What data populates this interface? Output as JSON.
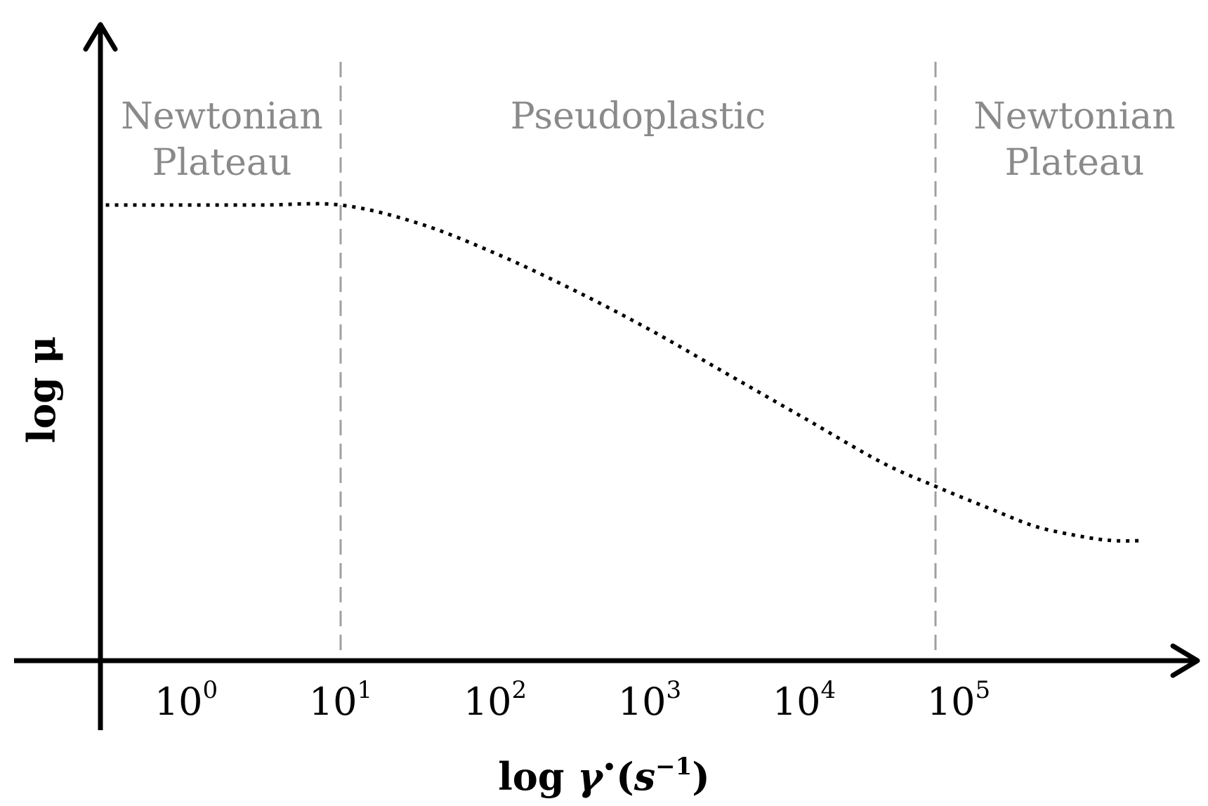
{
  "colors": {
    "axis": "#000000",
    "curve": "#000000",
    "boundary": "#a0a0a0",
    "region_text": "#8a8a8a"
  },
  "chart_data": {
    "type": "line",
    "title": "",
    "x_scale": "log",
    "y_scale": "log",
    "ylabel": "log μ",
    "xlabel": {
      "prefix": "log ",
      "symbol": "γ",
      "dot": "•",
      "unit_open": "(",
      "unit_base": "s",
      "unit_exp": "−1",
      "unit_close": ")"
    },
    "xticks": [
      {
        "base": "10",
        "exp": "0",
        "value": 1
      },
      {
        "base": "10",
        "exp": "1",
        "value": 10
      },
      {
        "base": "10",
        "exp": "2",
        "value": 100
      },
      {
        "base": "10",
        "exp": "3",
        "value": 1000
      },
      {
        "base": "10",
        "exp": "4",
        "value": 10000
      },
      {
        "base": "10",
        "exp": "5",
        "value": 100000
      }
    ],
    "xlim_log10": [
      -0.55,
      6.3
    ],
    "ylim_relative": [
      0,
      1
    ],
    "boundaries_log10": [
      1,
      4.85
    ],
    "regions": [
      {
        "lines": [
          "Newtonian",
          "Plateau"
        ],
        "from_log10": -0.55,
        "to_log10": 1
      },
      {
        "lines": [
          "Pseudoplastic"
        ],
        "from_log10": 1,
        "to_log10": 4.85
      },
      {
        "lines": [
          "Newtonian",
          "Plateau"
        ],
        "from_log10": 4.85,
        "to_log10": 6.3
      }
    ],
    "series": [
      {
        "style": "dotted",
        "x_log10": [
          -0.52,
          0,
          0.5,
          1.0,
          1.5,
          2.0,
          2.5,
          3.0,
          3.5,
          4.0,
          4.5,
          4.85,
          5.2,
          5.5,
          5.8,
          6.0,
          6.2
        ],
        "y_relative": [
          1.0,
          1.0,
          1.0,
          1.0,
          0.955,
          0.88,
          0.79,
          0.69,
          0.58,
          0.47,
          0.36,
          0.3,
          0.245,
          0.2,
          0.175,
          0.165,
          0.165
        ]
      }
    ],
    "grid": false,
    "legend": "none"
  }
}
